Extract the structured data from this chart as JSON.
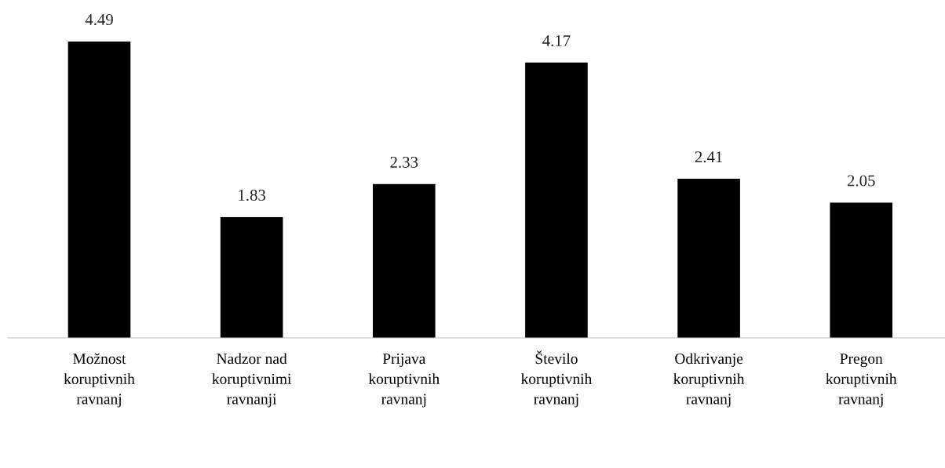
{
  "chart_data": {
    "type": "bar",
    "categories": [
      "Možnost\nkoruptivnih\nravnanj",
      "Nadzor nad\nkoruptivnimi\nravnanji",
      "Prijava\nkoruptivnih\nravnanj",
      "Število\nkoruptivnih\nravnanj",
      "Odkrivanje\nkoruptivnih\nravnanj",
      "Pregon\nkoruptivnih\nravnanj"
    ],
    "values": [
      4.49,
      1.83,
      2.33,
      4.17,
      2.41,
      2.05
    ],
    "color": "#000000",
    "data_labels": true,
    "grid": false,
    "legend": false
  }
}
